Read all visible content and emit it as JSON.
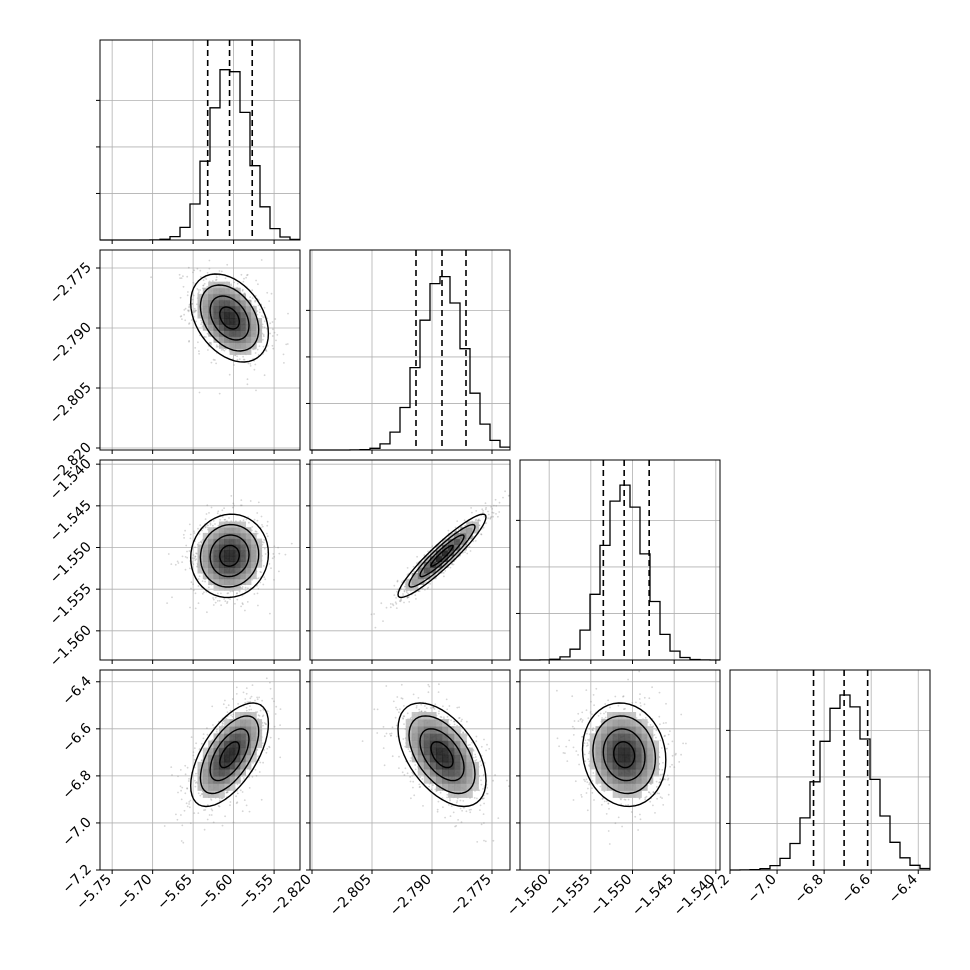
{
  "chart_data": {
    "type": "corner",
    "grid": true,
    "dims": [
      {
        "ticks": [
          -5.75,
          -5.7,
          -5.65,
          -5.6,
          -5.55
        ],
        "tick_labels": [
          "−5.75",
          "−5.70",
          "−5.65",
          "−5.60",
          "−5.55"
        ],
        "range": [
          -5.765,
          -5.518
        ],
        "mean": -5.605,
        "sd": 0.024,
        "quantiles": [
          -5.632,
          -5.605,
          -5.577
        ]
      },
      {
        "ticks": [
          -2.82,
          -2.805,
          -2.79,
          -2.775
        ],
        "tick_labels": [
          "−2.820",
          "−2.805",
          "−2.790",
          "−2.775"
        ],
        "range": [
          -2.8205,
          -2.7705
        ],
        "mean": -2.7875,
        "sd": 0.0055,
        "quantiles": [
          -2.794,
          -2.7875,
          -2.7815
        ]
      },
      {
        "ticks": [
          -1.56,
          -1.555,
          -1.55,
          -1.545,
          -1.54
        ],
        "tick_labels": [
          "−1.560",
          "−1.555",
          "−1.550",
          "−1.545",
          "−1.540"
        ],
        "range": [
          -1.5635,
          -1.5395
        ],
        "mean": -1.551,
        "sd": 0.0025,
        "quantiles": [
          -1.5535,
          -1.551,
          -1.548
        ]
      },
      {
        "ticks": [
          -7.2,
          -7.0,
          -6.8,
          -6.6,
          -6.4
        ],
        "tick_labels": [
          "−7.2",
          "−7.0",
          "−6.8",
          "−6.6",
          "−6.4"
        ],
        "range": [
          -7.2,
          -6.35
        ],
        "mean": -6.71,
        "sd": 0.11,
        "quantiles": [
          -6.845,
          -6.715,
          -6.615
        ]
      }
    ],
    "correlations": [
      {
        "row": 1,
        "col": 0,
        "rho": -0.35
      },
      {
        "row": 2,
        "col": 0,
        "rho": 0.05
      },
      {
        "row": 2,
        "col": 1,
        "rho": 0.93
      },
      {
        "row": 3,
        "col": 0,
        "rho": 0.6
      },
      {
        "row": 3,
        "col": 1,
        "rho": -0.5
      },
      {
        "row": 3,
        "col": 2,
        "rho": -0.1
      }
    ],
    "contour_levels_sigma": [
      0.5,
      1.0,
      1.5,
      2.0
    ],
    "colors": {
      "line": "#000000",
      "grid": "#b0b0b0",
      "points": "#888888"
    }
  }
}
